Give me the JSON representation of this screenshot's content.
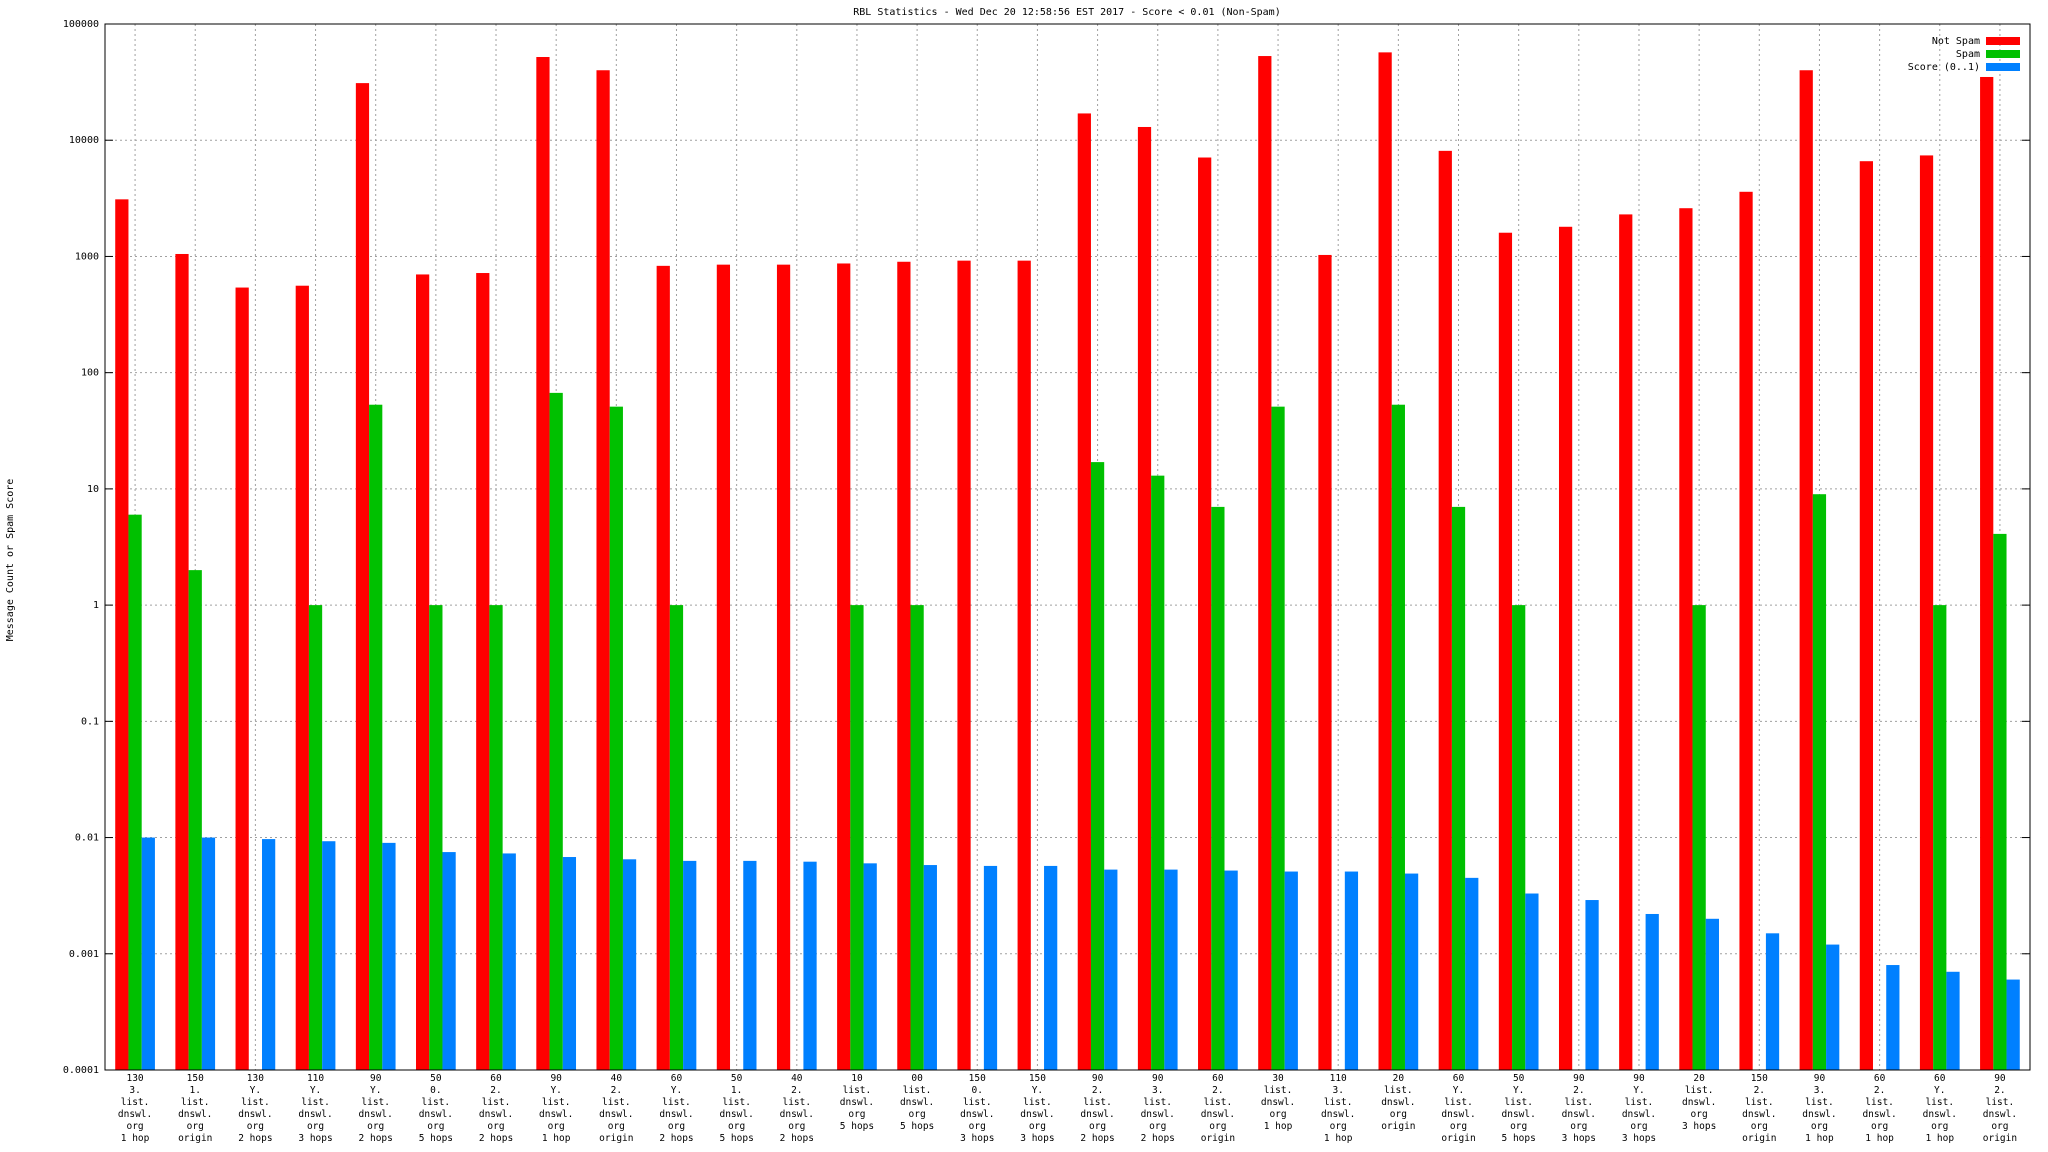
{
  "chart_data": {
    "type": "bar",
    "title": "RBL Statistics - Wed Dec 20 12:58:56 EST 2017 - Score < 0.01 (Non-Spam)",
    "y_label": "Message Count or Spam Score",
    "log_scale": true,
    "grid": true,
    "legend": "top-right",
    "categories": [
      "130\n3.\nlist.\ndnswl.\norg\n1 hop",
      "150\n1.\nlist.\ndnswl.\norg\norigin",
      "130\nY.\nlist.\ndnswl.\norg\n2 hops",
      "110\nY.\nlist.\ndnswl.\norg\n3 hops",
      "90\nY.\nlist.\ndnswl.\norg\n2 hops",
      "50\n0.\nlist.\ndnswl.\norg\n5 hops",
      "60\n2.\nlist.\ndnswl.\norg\n2 hops",
      "90\nY.\nlist.\ndnswl.\norg\n1 hop",
      "40\n2.\nlist.\ndnswl.\norg\norigin",
      "60\nY.\nlist.\ndnswl.\norg\n2 hops",
      "50\n1.\nlist.\ndnswl.\norg\n5 hops",
      "40\n2.\nlist.\ndnswl.\norg\n2 hops",
      "10\nlist.\ndnswl.\norg\n5 hops",
      "00\nlist.\ndnswl.\norg\n5 hops",
      "150\n0.\nlist.\ndnswl.\norg\n3 hops",
      "150\nY.\nlist.\ndnswl.\norg\n3 hops",
      "90\n2.\nlist.\ndnswl.\norg\n2 hops",
      "90\n3.\nlist.\ndnswl.\norg\n2 hops",
      "60\n2.\nlist.\ndnswl.\norg\norigin",
      "30\nlist.\ndnswl.\norg\n1 hop",
      "110\n3.\nlist.\ndnswl.\norg\n1 hop",
      "20\nlist.\ndnswl.\norg\norigin",
      "60\nY.\nlist.\ndnswl.\norg\norigin",
      "50\nY.\nlist.\ndnswl.\norg\n5 hops",
      "90\n2.\nlist.\ndnswl.\norg\n3 hops",
      "90\nY.\nlist.\ndnswl.\norg\n3 hops",
      "20\nlist.\ndnswl.\norg\n3 hops",
      "150\n2.\nlist.\ndnswl.\norg\norigin",
      "90\n3.\nlist.\ndnswl.\norg\n1 hop",
      "60\n2.\nlist.\ndnswl.\norg\n1 hop",
      "60\nY.\nlist.\ndnswl.\norg\n1 hop",
      "90\n2.\nlist.\ndnswl.\norg\norigin"
    ],
    "series": [
      {
        "name": "Not Spam",
        "color": "#ff0000",
        "values": [
          3100,
          1050,
          540,
          560,
          31000,
          700,
          720,
          52000,
          40000,
          830,
          850,
          850,
          870,
          900,
          920,
          920,
          17000,
          13000,
          7100,
          53000,
          1030,
          57000,
          8100,
          1600,
          1800,
          2300,
          2600,
          3600,
          40000,
          6600,
          7400,
          35000
        ]
      },
      {
        "name": "Spam",
        "color": "#00c000",
        "values": [
          6,
          2,
          null,
          1,
          53,
          1,
          1,
          67,
          51,
          1,
          null,
          null,
          1,
          1,
          null,
          null,
          17,
          13,
          7,
          51,
          null,
          53,
          7,
          1,
          null,
          null,
          1,
          null,
          9,
          null,
          1,
          4.1
        ]
      },
      {
        "name": "Score (0..1)",
        "color": "#0080ff",
        "values": [
          0.01,
          0.01,
          0.0097,
          0.0093,
          0.009,
          0.0075,
          0.0073,
          0.0068,
          0.0065,
          0.0063,
          0.0063,
          0.0062,
          0.006,
          0.0058,
          0.0057,
          0.0057,
          0.0053,
          0.0053,
          0.0052,
          0.0051,
          0.0051,
          0.0049,
          0.0045,
          0.0033,
          0.0029,
          0.0022,
          0.002,
          0.0015,
          0.0012,
          0.0008,
          0.0007,
          0.0006
        ]
      }
    ],
    "ylim": [
      0.0001,
      100000
    ],
    "yticks": [
      0.0001,
      0.001,
      0.01,
      0.1,
      1,
      10,
      100,
      1000,
      10000,
      100000
    ]
  }
}
